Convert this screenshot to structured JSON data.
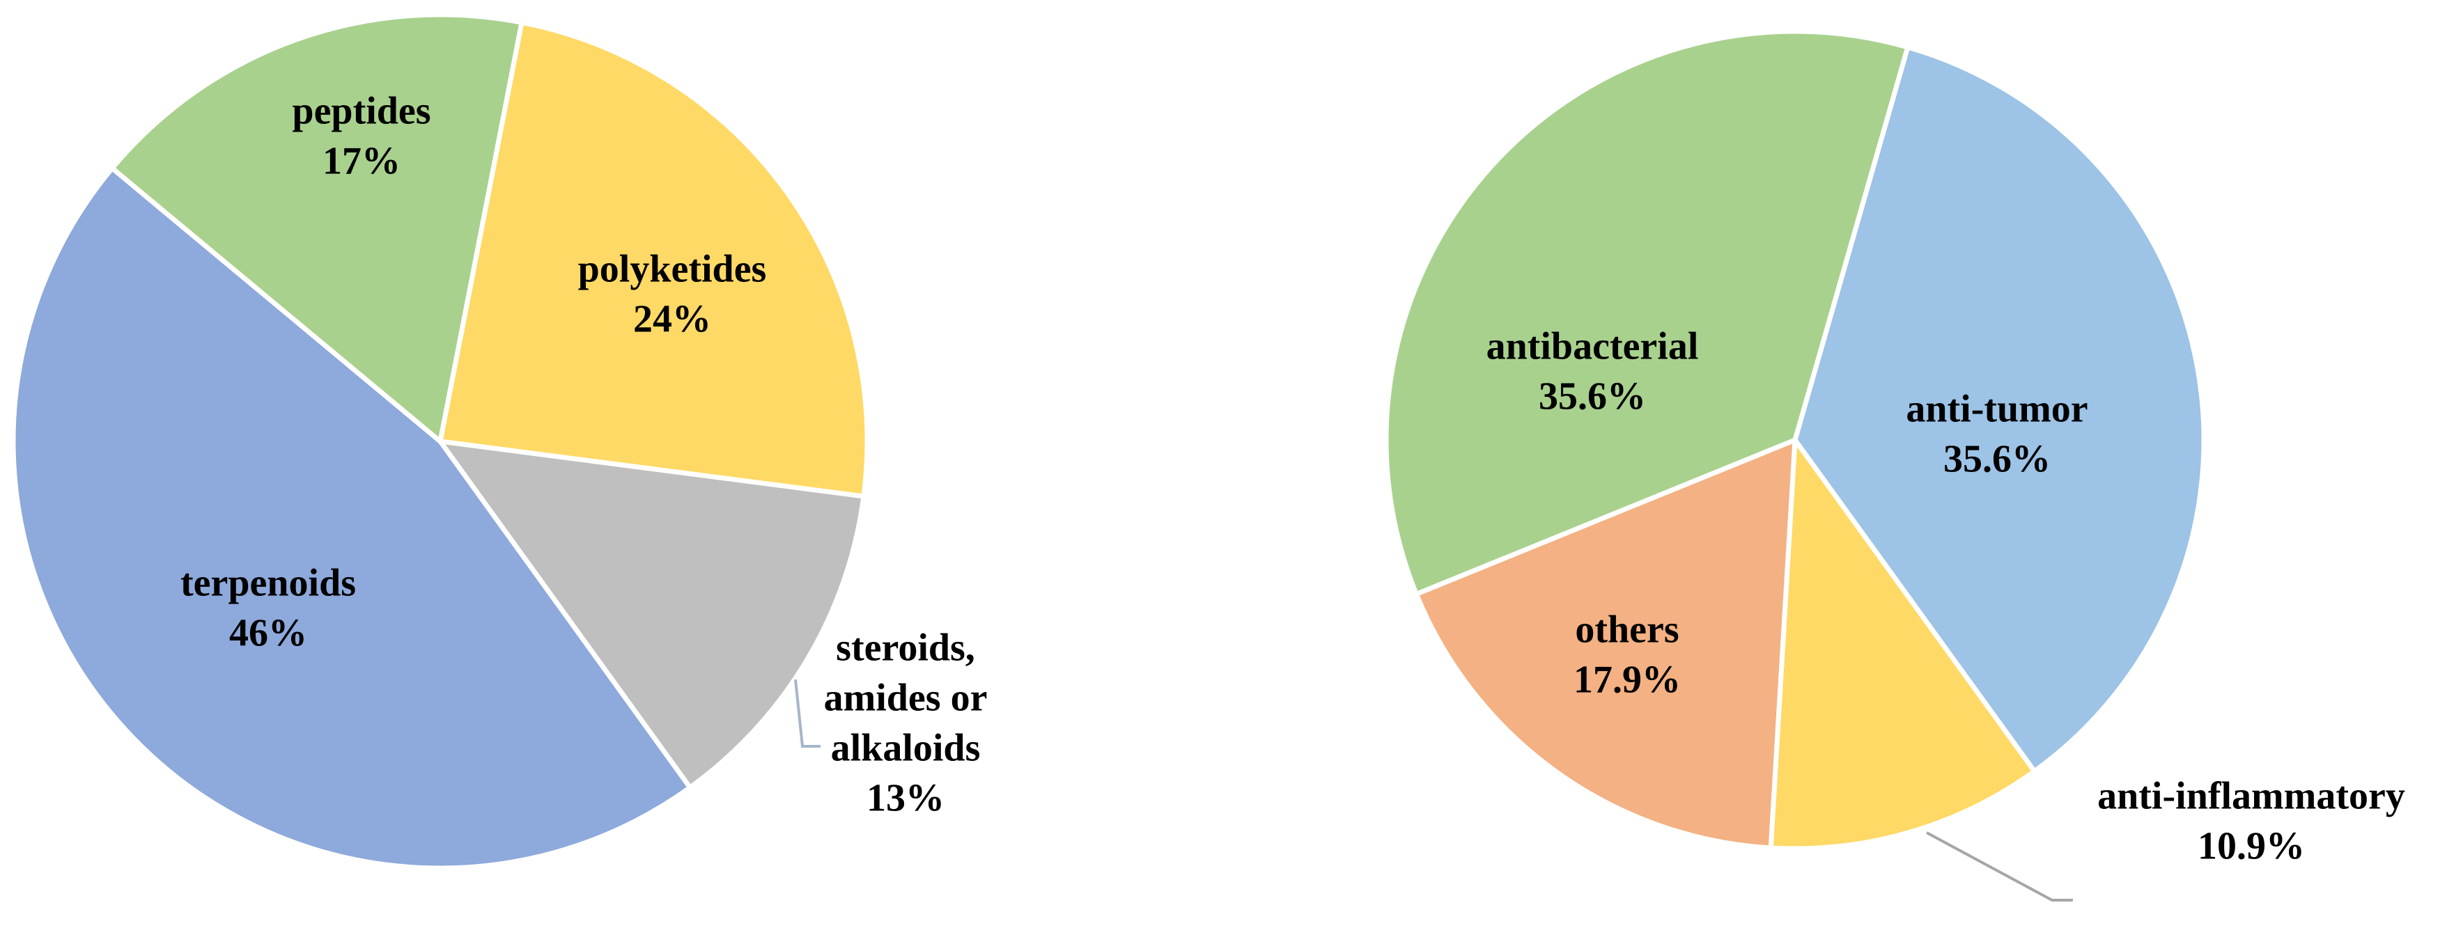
{
  "chart_data": [
    {
      "type": "pie",
      "title": "",
      "slices": [
        {
          "label": "polyketides",
          "value": 24,
          "value_label": "24%",
          "color": "#FFD966"
        },
        {
          "label": "steroids, amides or alkaloids",
          "label_lines": [
            "steroids,",
            "amides or",
            "alkaloids"
          ],
          "value": 13,
          "value_label": "13%",
          "color": "#BFBFBF"
        },
        {
          "label": "terpenoids",
          "value": 46,
          "value_label": "46%",
          "color": "#8EA9DB"
        },
        {
          "label": "peptides",
          "value": 17,
          "value_label": "17%",
          "color": "#A9D18E"
        }
      ]
    },
    {
      "type": "pie",
      "title": "",
      "slices": [
        {
          "label": "anti-tumor",
          "value": 35.6,
          "value_label": "35.6%",
          "color": "#9DC3E6"
        },
        {
          "label": "anti-inflammatory",
          "value": 10.9,
          "value_label": "10.9%",
          "color": "#FFD966"
        },
        {
          "label": "others",
          "value": 17.9,
          "value_label": "17.9%",
          "color": "#F4B183"
        },
        {
          "label": "antibacterial",
          "value": 35.6,
          "value_label": "35.6%",
          "color": "#A9D18E"
        }
      ]
    }
  ]
}
